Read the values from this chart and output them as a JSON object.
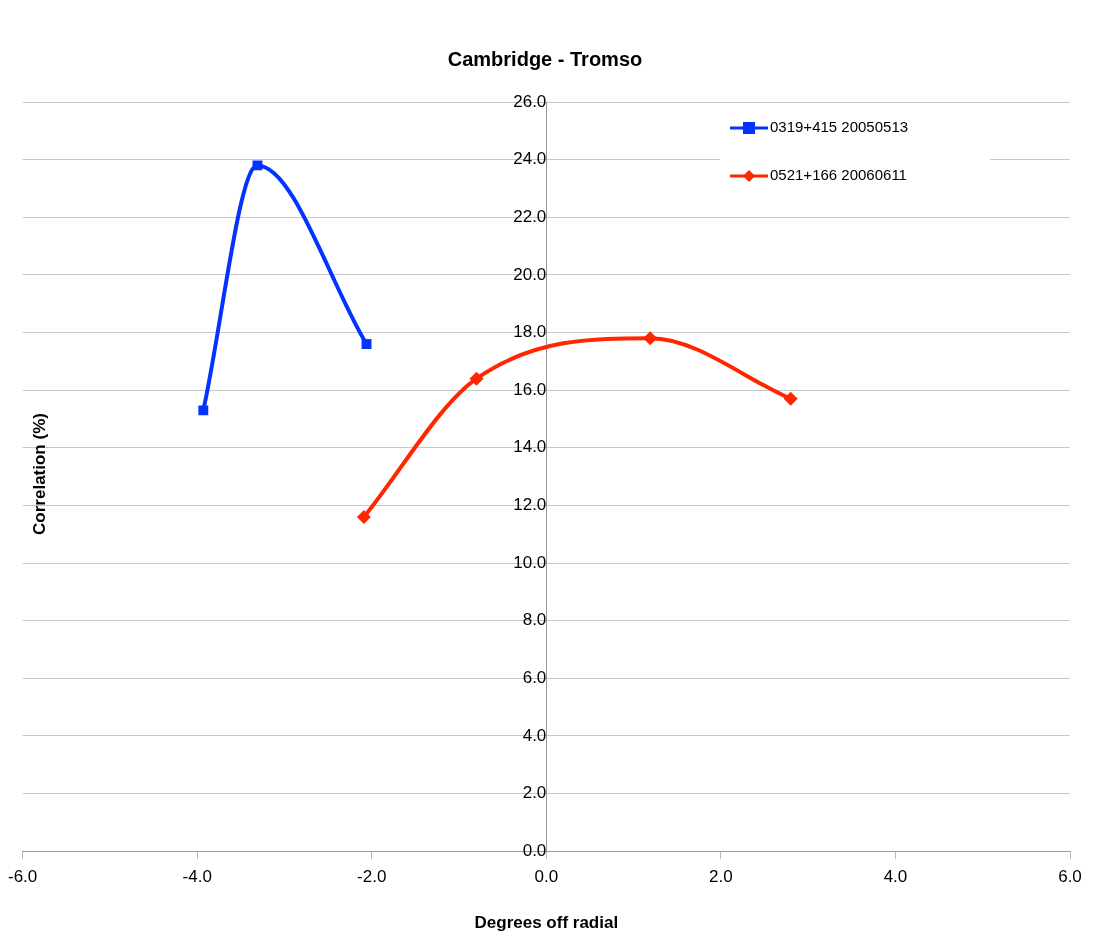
{
  "chart_data": {
    "type": "scatter",
    "title": "Cambridge - Tromso",
    "xlabel": "Degrees off radial",
    "ylabel": "Correlation (%)",
    "series": [
      {
        "name": "0319+415 20050513",
        "type": "line",
        "color": "#0433ff",
        "marker": "square",
        "x": [
          -3.93,
          -3.31,
          -2.06
        ],
        "values": [
          15.3,
          23.8,
          17.6
        ]
      },
      {
        "name": "0521+166 20060611",
        "type": "line",
        "color": "#ff2600",
        "marker": "diamond",
        "x": [
          -2.09,
          -0.8,
          1.19,
          2.8
        ],
        "values": [
          11.6,
          16.4,
          17.8,
          15.7
        ]
      }
    ],
    "xlim": [
      -6,
      6
    ],
    "xticks": [
      {
        "value": -6,
        "label": "-6.0"
      },
      {
        "value": -4,
        "label": "-4.0"
      },
      {
        "value": -2,
        "label": "-2.0"
      },
      {
        "value": 0,
        "label": "0.0"
      },
      {
        "value": 2,
        "label": "2.0"
      },
      {
        "value": 4,
        "label": "4.0"
      },
      {
        "value": 6,
        "label": "6.0"
      }
    ],
    "ylim": [
      0,
      26
    ],
    "yticks": [
      {
        "value": 0,
        "label": "0.0"
      },
      {
        "value": 2,
        "label": "2.0"
      },
      {
        "value": 4,
        "label": "4.0"
      },
      {
        "value": 6,
        "label": "6.0"
      },
      {
        "value": 8,
        "label": "8.0"
      },
      {
        "value": 10,
        "label": "10.0"
      },
      {
        "value": 12,
        "label": "12.0"
      },
      {
        "value": 14,
        "label": "14.0"
      },
      {
        "value": 16,
        "label": "16.0"
      },
      {
        "value": 18,
        "label": "18.0"
      },
      {
        "value": 20,
        "label": "20.0"
      },
      {
        "value": 22,
        "label": "22.0"
      },
      {
        "value": 24,
        "label": "24.0"
      },
      {
        "value": 26,
        "label": "26.0"
      }
    ],
    "grid": "y",
    "legend": "top right"
  }
}
